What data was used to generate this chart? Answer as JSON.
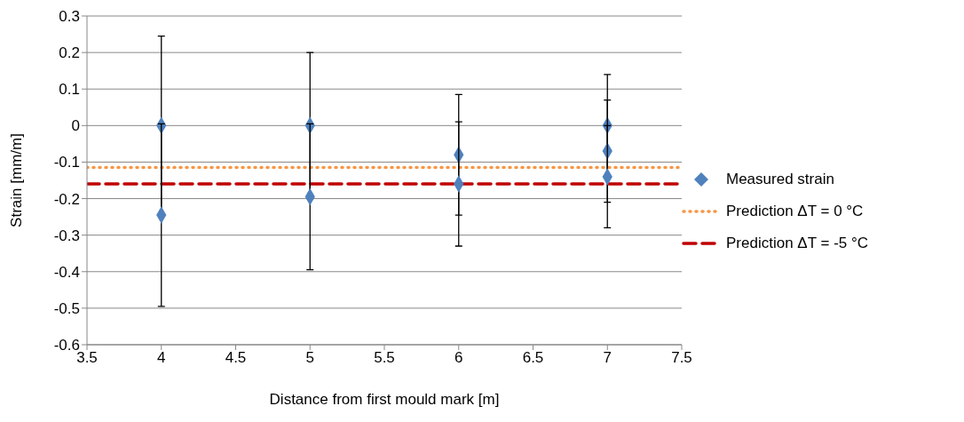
{
  "chart_data": {
    "type": "scatter",
    "xlabel": "Distance from first mould mark [m]",
    "ylabel": "Strain [mm/m]",
    "xlim": [
      3.5,
      7.5
    ],
    "xticks": [
      3.5,
      4,
      4.5,
      5,
      5.5,
      6,
      6.5,
      7,
      7.5
    ],
    "ylim": [
      -0.6,
      0.3
    ],
    "yticks": [
      -0.6,
      -0.5,
      -0.4,
      -0.3,
      -0.2,
      -0.1,
      0,
      0.1,
      0.2,
      0.3
    ],
    "grid": "y",
    "legend": "right",
    "series": [
      {
        "name": "Measured strain",
        "marker": "diamond",
        "color": "#4f81bd",
        "x": [
          4,
          4,
          5,
          5,
          6,
          6,
          7,
          7,
          7
        ],
        "values": [
          0,
          -0.245,
          0,
          -0.195,
          -0.08,
          -0.16,
          0,
          -0.07,
          -0.14
        ],
        "errors": [
          0.245,
          0.25,
          0.2,
          0.2,
          0.165,
          0.17,
          0.14,
          0.14,
          0.14
        ]
      },
      {
        "name": "Prediction ΔT = 0 °C",
        "type": "line",
        "color": "#f79646",
        "line_style": "dotted",
        "x": [
          3.5,
          7.5
        ],
        "values": [
          -0.115,
          -0.115
        ]
      },
      {
        "name": "Prediction ΔT = -5 °C",
        "type": "line",
        "color": "#c00000",
        "line_style": "dashed",
        "x": [
          3.5,
          7.5
        ],
        "values": [
          -0.16,
          -0.16
        ]
      }
    ]
  }
}
